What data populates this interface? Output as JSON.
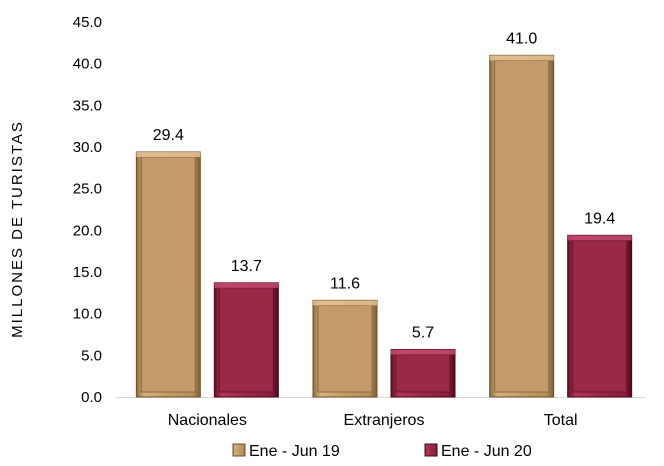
{
  "chart_data": {
    "type": "bar",
    "title": "",
    "xlabel": "",
    "ylabel": "MILLONES DE TURISTAS",
    "ylim": [
      0,
      45
    ],
    "ytick_step": 5,
    "categories": [
      "Nacionales",
      "Extranjeros",
      "Total"
    ],
    "series": [
      {
        "name": "Ene - Jun 19",
        "values": [
          29.4,
          11.6,
          41.0
        ],
        "color": "#c49b68"
      },
      {
        "name": "Ene - Jun 20",
        "values": [
          13.7,
          5.7,
          19.4
        ],
        "color": "#9b2847"
      }
    ],
    "legend_position": "bottom",
    "grid": false
  }
}
